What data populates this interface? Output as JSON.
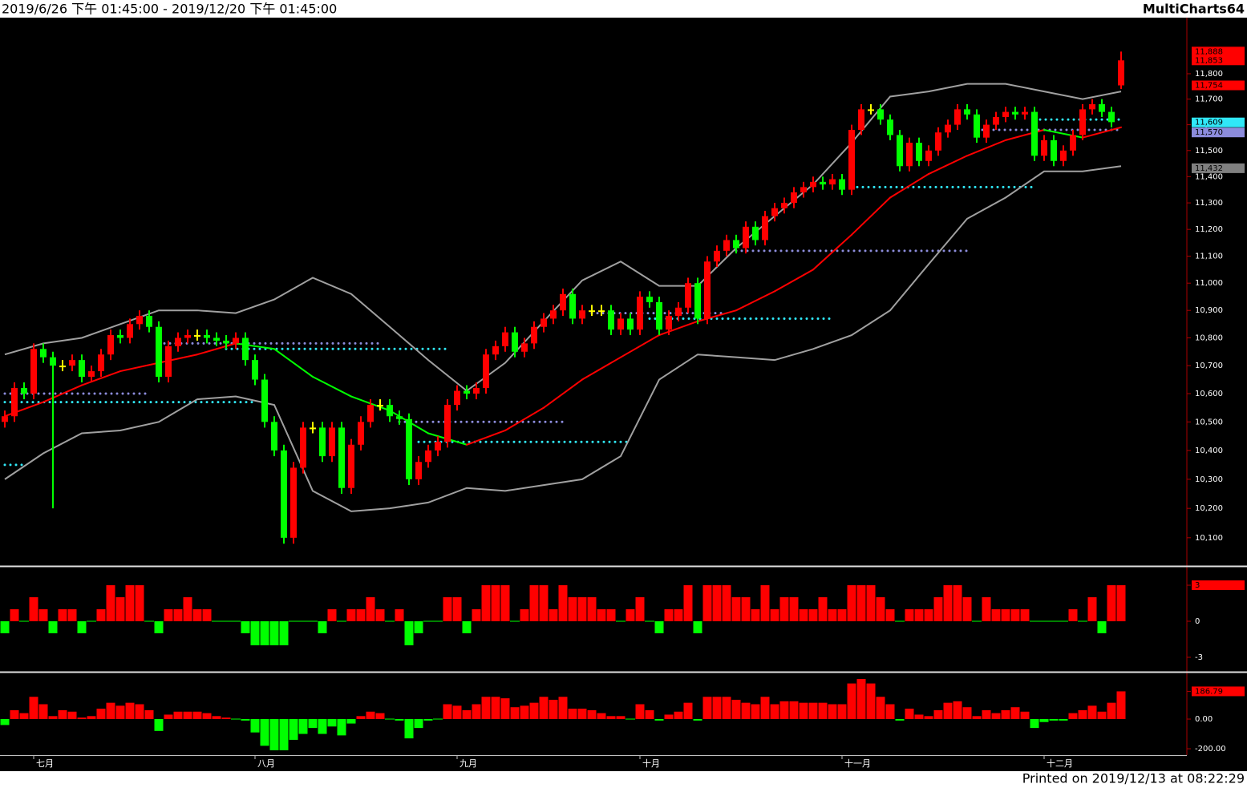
{
  "header": {
    "range": "2019/6/26 下午 01:45:00 - 2019/12/20 下午 01:45:00",
    "brand": "MultiCharts64"
  },
  "footer": "Printed on 2019/12/13 at 08:22:29",
  "chart_data": [
    {
      "type": "candlestick",
      "log_scale": true,
      "ylim": [
        10005,
        12024
      ],
      "up_color": "#ff0000",
      "down_color": "#00ff00",
      "flat_color": "#ffff00",
      "band_color": "#a0a0a0",
      "categories": [
        null,
        null,
        null,
        "七月",
        null,
        null,
        null,
        null,
        null,
        null,
        null,
        null,
        null,
        null,
        null,
        null,
        null,
        null,
        null,
        null,
        null,
        null,
        null,
        null,
        null,
        null,
        "八月",
        null,
        null,
        null,
        null,
        null,
        null,
        null,
        null,
        null,
        null,
        null,
        null,
        null,
        null,
        null,
        null,
        null,
        null,
        null,
        null,
        "九月",
        null,
        null,
        null,
        null,
        null,
        null,
        null,
        null,
        null,
        null,
        null,
        null,
        null,
        null,
        null,
        null,
        null,
        null,
        "十月",
        null,
        null,
        null,
        null,
        null,
        null,
        null,
        null,
        null,
        null,
        null,
        null,
        null,
        null,
        null,
        null,
        null,
        null,
        null,
        null,
        "十一月",
        null,
        null,
        null,
        null,
        null,
        null,
        null,
        null,
        null,
        null,
        null,
        null,
        null,
        null,
        null,
        null,
        null,
        null,
        null,
        null,
        "十二月",
        null,
        null,
        null,
        null,
        null,
        null,
        null,
        null
      ],
      "open": [
        10500,
        10520,
        10620,
        10600,
        10760,
        10730,
        10700,
        10700,
        10720,
        10660,
        10680,
        10740,
        10810,
        10800,
        10850,
        10880,
        10840,
        10660,
        10770,
        10800,
        10810,
        10810,
        10800,
        10790,
        10780,
        10800,
        10720,
        10650,
        10500,
        10400,
        10100,
        10340,
        10480,
        10480,
        10380,
        10480,
        10270,
        10420,
        10500,
        10560,
        10560,
        10520,
        10510,
        10300,
        10360,
        10400,
        10430,
        10560,
        10610,
        10600,
        10620,
        10740,
        10770,
        10820,
        10750,
        10780,
        10840,
        10870,
        10900,
        10960,
        10870,
        10900,
        10900,
        10900,
        10830,
        10870,
        10830,
        10950,
        10930,
        10830,
        10880,
        10910,
        11000,
        10870,
        11080,
        11120,
        11160,
        11130,
        11210,
        11160,
        11250,
        11280,
        11300,
        11340,
        11360,
        11380,
        11370,
        11390,
        11350,
        11580,
        11660,
        11660,
        11620,
        11560,
        11440,
        11530,
        11460,
        11500,
        11570,
        11600,
        11660,
        11640,
        11550,
        11600,
        11630,
        11650,
        11640,
        11650,
        11480,
        11540,
        11460,
        11500,
        11560,
        11660,
        11680,
        11650,
        11754
      ],
      "high": [
        10540,
        10640,
        10640,
        10780,
        10780,
        10750,
        10720,
        10740,
        10740,
        10700,
        10760,
        10830,
        10830,
        10870,
        10900,
        10900,
        10860,
        10790,
        10820,
        10830,
        10830,
        10830,
        10820,
        10810,
        10820,
        10820,
        10740,
        10670,
        10520,
        10420,
        10360,
        10500,
        10500,
        10500,
        10500,
        10500,
        10440,
        10520,
        10580,
        10580,
        10580,
        10540,
        10530,
        10380,
        10420,
        10450,
        10580,
        10630,
        10630,
        10640,
        10760,
        10790,
        10840,
        10840,
        10800,
        10860,
        10890,
        10920,
        10980,
        10980,
        10920,
        10920,
        10920,
        10920,
        10890,
        10890,
        10970,
        10970,
        10950,
        10900,
        10930,
        11020,
        11020,
        11100,
        11140,
        11180,
        11180,
        11230,
        11230,
        11270,
        11300,
        11320,
        11360,
        11380,
        11400,
        11400,
        11410,
        11410,
        11600,
        11680,
        11680,
        11680,
        11640,
        11580,
        11550,
        11550,
        11520,
        11590,
        11620,
        11680,
        11680,
        11660,
        11620,
        11650,
        11670,
        11670,
        11670,
        11670,
        11560,
        11560,
        11520,
        11580,
        11680,
        11700,
        11700,
        11670,
        11888
      ],
      "low": [
        10480,
        10500,
        10580,
        10580,
        10710,
        10200,
        10680,
        10680,
        10640,
        10640,
        10660,
        10720,
        10780,
        10780,
        10830,
        10820,
        10640,
        10640,
        10750,
        10780,
        10790,
        10780,
        10770,
        10760,
        10760,
        10700,
        10630,
        10480,
        10380,
        10080,
        10080,
        10320,
        10460,
        10360,
        10360,
        10250,
        10250,
        10400,
        10480,
        10540,
        10500,
        10490,
        10280,
        10280,
        10340,
        10380,
        10410,
        10540,
        10580,
        10580,
        10600,
        10720,
        10750,
        10730,
        10730,
        10760,
        10820,
        10850,
        10880,
        10850,
        10850,
        10880,
        10880,
        10810,
        10810,
        10810,
        10810,
        10910,
        10810,
        10810,
        10860,
        10890,
        10850,
        10850,
        11060,
        11100,
        11110,
        11110,
        11140,
        11140,
        11230,
        11260,
        11280,
        11320,
        11340,
        11350,
        11350,
        11330,
        11330,
        11560,
        11640,
        11600,
        11540,
        11420,
        11420,
        11440,
        11440,
        11480,
        11550,
        11580,
        11620,
        11530,
        11530,
        11580,
        11610,
        11620,
        11620,
        11460,
        11460,
        11440,
        11440,
        11480,
        11540,
        11640,
        11630,
        11590,
        11740
      ],
      "close": [
        10520,
        10620,
        10600,
        10760,
        10730,
        10700,
        10700,
        10720,
        10660,
        10680,
        10740,
        10810,
        10800,
        10850,
        10880,
        10840,
        10660,
        10770,
        10800,
        10810,
        10810,
        10800,
        10790,
        10780,
        10800,
        10720,
        10650,
        10500,
        10400,
        10100,
        10340,
        10480,
        10480,
        10380,
        10480,
        10270,
        10420,
        10500,
        10560,
        10560,
        10520,
        10510,
        10300,
        10360,
        10400,
        10430,
        10560,
        10610,
        10600,
        10620,
        10740,
        10770,
        10820,
        10750,
        10780,
        10840,
        10870,
        10900,
        10960,
        10870,
        10900,
        10900,
        10900,
        10830,
        10870,
        10830,
        10950,
        10930,
        10830,
        10880,
        10910,
        11000,
        10870,
        11080,
        11120,
        11160,
        11130,
        11210,
        11160,
        11250,
        11280,
        11300,
        11340,
        11360,
        11380,
        11370,
        11390,
        11350,
        11580,
        11660,
        11660,
        11620,
        11560,
        11440,
        11530,
        11460,
        11500,
        11570,
        11600,
        11660,
        11640,
        11550,
        11600,
        11630,
        11650,
        11640,
        11650,
        11480,
        11540,
        11460,
        11500,
        11560,
        11660,
        11680,
        11650,
        11610,
        11853
      ],
      "bands": {
        "x": [
          0,
          4,
          8,
          12,
          16,
          20,
          24,
          28,
          32,
          36,
          40,
          44,
          48,
          52,
          56,
          60,
          64,
          68,
          72,
          76,
          80,
          84,
          88,
          92,
          96,
          100,
          104,
          108,
          112,
          116
        ],
        "upper": [
          10740,
          10780,
          10800,
          10850,
          10900,
          10900,
          10890,
          10940,
          11020,
          10960,
          10840,
          10720,
          10610,
          10710,
          10860,
          11010,
          11080,
          10990,
          10990,
          11130,
          11250,
          11370,
          11530,
          11710,
          11730,
          11760,
          11760,
          11730,
          11700,
          11730
        ],
        "middle": [
          10520,
          10570,
          10630,
          10680,
          10710,
          10740,
          10780,
          10760,
          10660,
          10590,
          10540,
          10460,
          10420,
          10470,
          10550,
          10650,
          10730,
          10810,
          10860,
          10900,
          10970,
          11050,
          11180,
          11320,
          11410,
          11480,
          11540,
          11580,
          11550,
          11590
        ],
        "lower": [
          10300,
          10390,
          10460,
          10470,
          10500,
          10580,
          10590,
          10560,
          10260,
          10190,
          10200,
          10220,
          10270,
          10260,
          10280,
          10300,
          10380,
          10650,
          10740,
          10730,
          10720,
          10760,
          10810,
          10900,
          11070,
          11240,
          11320,
          11420,
          11420,
          11440
        ]
      },
      "levels": [
        {
          "value": 10350,
          "start": 0,
          "end": 2,
          "color": "#30e8f8"
        },
        {
          "value": 10570,
          "start": 0,
          "end": 26,
          "color": "#30e8f8"
        },
        {
          "value": 10760,
          "start": 23,
          "end": 46,
          "color": "#30e8f8"
        },
        {
          "value": 10430,
          "start": 43,
          "end": 65,
          "color": "#30e8f8"
        },
        {
          "value": 10870,
          "start": 67,
          "end": 86,
          "color": "#30e8f8"
        },
        {
          "value": 11360,
          "start": 88,
          "end": 107,
          "color": "#30e8f8"
        },
        {
          "value": 11620,
          "start": 107,
          "end": 116,
          "color": "#30e8f8"
        },
        {
          "value": 10600,
          "start": 0,
          "end": 15,
          "color": "#8c8cdc"
        },
        {
          "value": 10780,
          "start": 16,
          "end": 39,
          "color": "#8c8cdc"
        },
        {
          "value": 10500,
          "start": 41,
          "end": 58,
          "color": "#8c8cdc"
        },
        {
          "value": 10890,
          "start": 61,
          "end": 75,
          "color": "#8c8cdc"
        },
        {
          "value": 11120,
          "start": 76,
          "end": 100,
          "color": "#8c8cdc"
        },
        {
          "value": 11580,
          "start": 101,
          "end": 116,
          "color": "#8c8cdc"
        }
      ],
      "yticks": [
        {
          "value": 10100,
          "label": "10,100"
        },
        {
          "value": 10200,
          "label": "10,200"
        },
        {
          "value": 10300,
          "label": "10,300"
        },
        {
          "value": 10400,
          "label": "10,400"
        },
        {
          "value": 10500,
          "label": "10,500"
        },
        {
          "value": 10600,
          "label": "10,600"
        },
        {
          "value": 10700,
          "label": "10,700"
        },
        {
          "value": 10800,
          "label": "10,800"
        },
        {
          "value": 10900,
          "label": "10,900"
        },
        {
          "value": 11000,
          "label": "11,000"
        },
        {
          "value": 11100,
          "label": "11,100"
        },
        {
          "value": 11200,
          "label": "11,200"
        },
        {
          "value": 11300,
          "label": "11,300"
        },
        {
          "value": 11400,
          "label": "11,400"
        },
        {
          "value": 11500,
          "label": "11,500"
        },
        {
          "value": 11600,
          "label": "11,600"
        },
        {
          "value": 11700,
          "label": "11,700"
        },
        {
          "value": 11800,
          "label": "11,800"
        }
      ],
      "markers": [
        {
          "value": 11888,
          "label": "11,888",
          "color": "#ff0000"
        },
        {
          "value": 11853,
          "label": "11,853",
          "color": "#ff0000"
        },
        {
          "value": 11754,
          "label": "11,754",
          "color": "#ff0000"
        },
        {
          "value": 11609,
          "label": "11,609",
          "color": "#30e8f8"
        },
        {
          "value": 11570,
          "label": "11,570",
          "color": "#8c8cdc"
        },
        {
          "value": 11432,
          "label": "11,432",
          "color": "#808080"
        }
      ]
    },
    {
      "type": "bar",
      "ylim": [
        -4.07,
        4.47
      ],
      "up_color": "#ff0000",
      "down_color": "#00ff00",
      "values": [
        -1,
        1,
        0,
        2,
        1,
        -1,
        1,
        1,
        -1,
        0,
        1,
        3,
        2,
        3,
        3,
        0,
        -1,
        1,
        1,
        2,
        1,
        1,
        0,
        0,
        0,
        -1,
        -2,
        -2,
        -2,
        -2,
        0,
        0,
        0,
        -1,
        1,
        0,
        1,
        1,
        2,
        1,
        0,
        1,
        -2,
        -1,
        0,
        0,
        2,
        2,
        -1,
        1,
        3,
        3,
        3,
        0,
        1,
        3,
        3,
        1,
        3,
        2,
        2,
        2,
        1,
        1,
        0,
        1,
        2,
        0,
        -1,
        1,
        1,
        3,
        -1,
        3,
        3,
        3,
        2,
        2,
        1,
        3,
        1,
        2,
        2,
        1,
        1,
        2,
        1,
        1,
        3,
        3,
        3,
        2,
        1,
        0,
        1,
        1,
        1,
        2,
        3,
        3,
        2,
        0,
        2,
        1,
        1,
        1,
        1,
        0,
        0,
        0,
        0,
        1,
        0,
        2,
        -1,
        3,
        3
      ],
      "yticks": [
        3,
        0,
        -3
      ],
      "markers": [
        {
          "value": 3,
          "color": "#ff0000"
        }
      ]
    },
    {
      "type": "bar",
      "ylim": [
        -243,
        308
      ],
      "up_color": "#ff0000",
      "down_color": "#00ff00",
      "values": [
        -40,
        60,
        40,
        150,
        100,
        20,
        60,
        50,
        10,
        20,
        70,
        110,
        90,
        110,
        100,
        60,
        -80,
        30,
        50,
        50,
        50,
        40,
        20,
        10,
        0,
        -10,
        -90,
        -180,
        -210,
        -210,
        -140,
        -100,
        -60,
        -100,
        -50,
        -110,
        -30,
        20,
        50,
        40,
        0,
        -10,
        -130,
        -60,
        -10,
        0,
        100,
        90,
        60,
        100,
        150,
        150,
        140,
        80,
        90,
        110,
        150,
        130,
        150,
        70,
        70,
        60,
        40,
        20,
        20,
        0,
        100,
        60,
        -10,
        30,
        50,
        110,
        -10,
        150,
        150,
        150,
        130,
        110,
        100,
        150,
        100,
        120,
        120,
        110,
        110,
        110,
        100,
        100,
        240,
        270,
        240,
        150,
        100,
        -10,
        70,
        30,
        20,
        60,
        110,
        120,
        80,
        20,
        60,
        40,
        60,
        80,
        50,
        -60,
        -20,
        -10,
        -10,
        40,
        60,
        90,
        50,
        110,
        186.79
      ],
      "yticks": [
        {
          "value": 186.79,
          "label": "186.79"
        },
        {
          "value": 0,
          "label": "0.00"
        },
        {
          "value": -200,
          "label": "-200.00"
        }
      ],
      "markers": [
        {
          "value": 186.79,
          "color": "#ff0000"
        }
      ]
    }
  ]
}
